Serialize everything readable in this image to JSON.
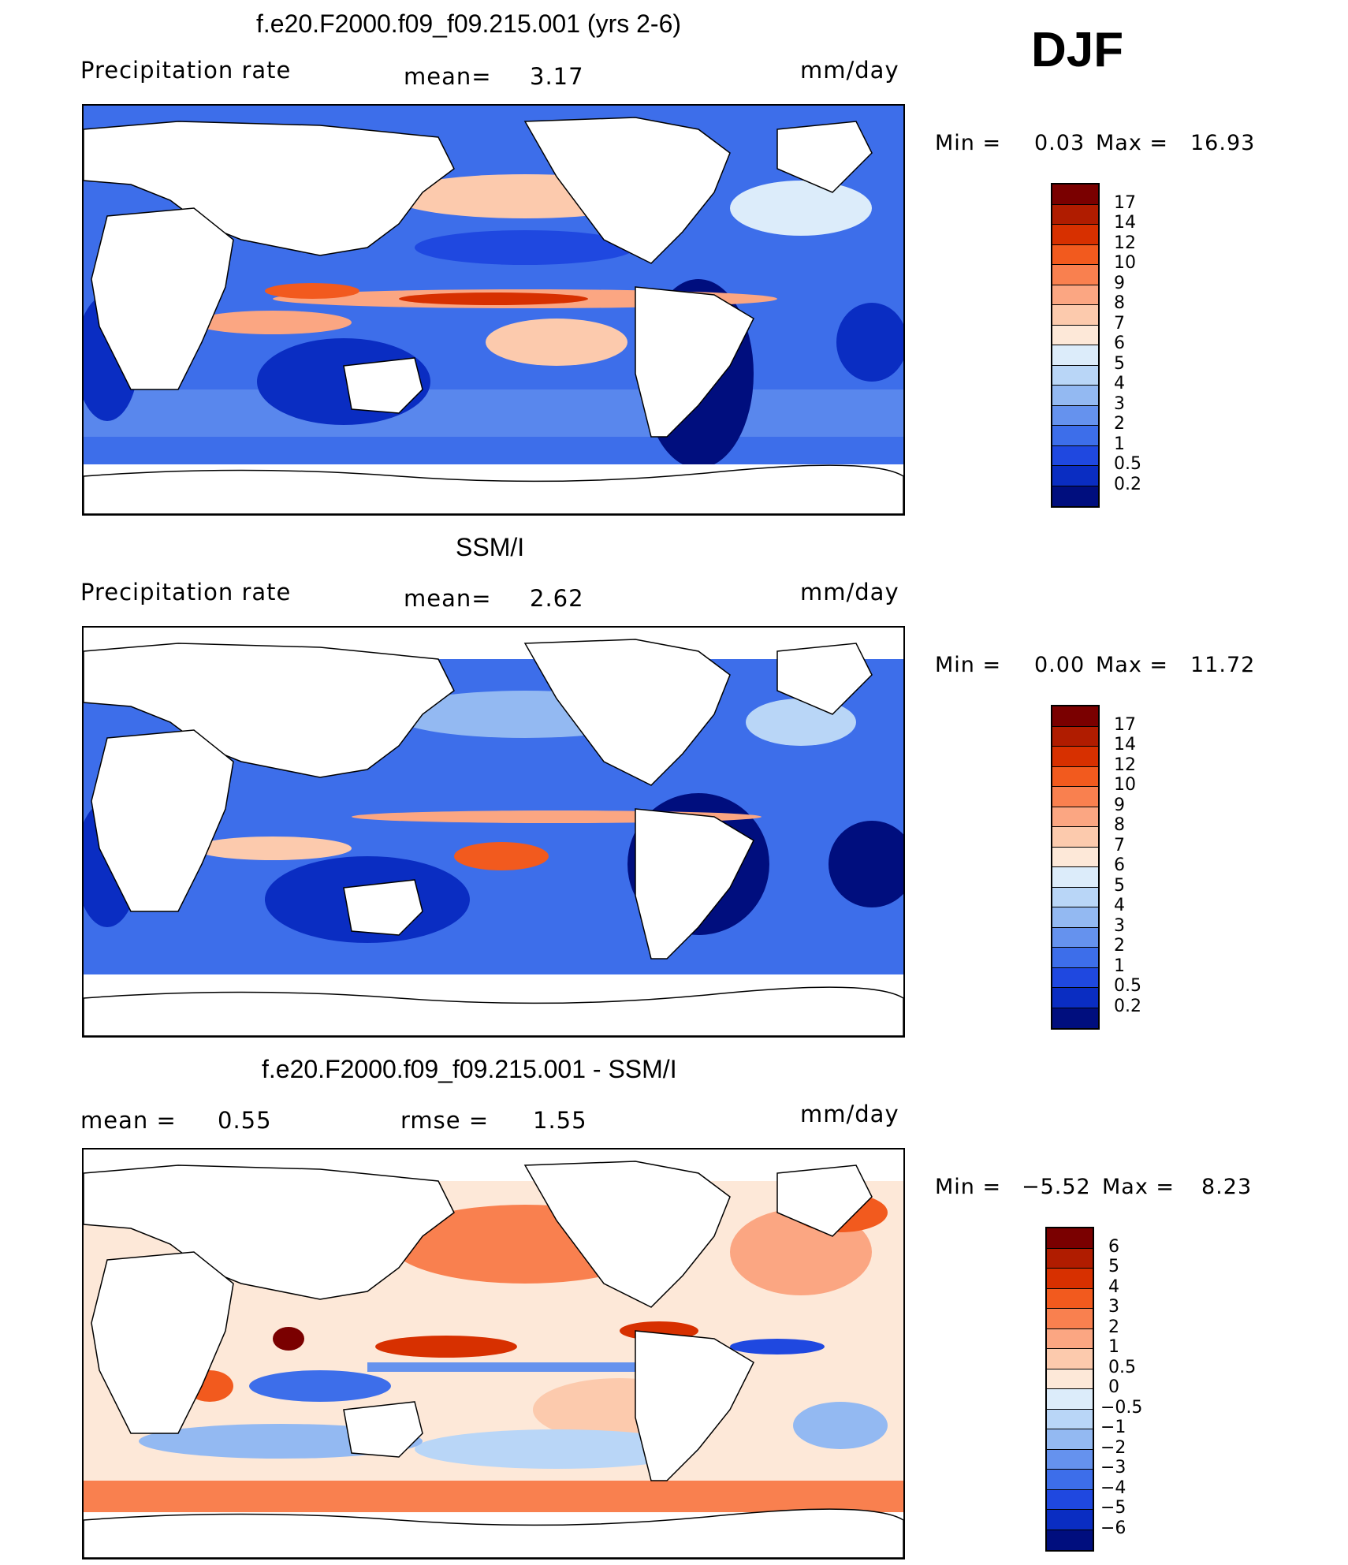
{
  "season": "DJF",
  "panels": [
    {
      "title": "f.e20.F2000.f09_f09.215.001 (yrs 2-6)",
      "left_label": "Precipitation  rate",
      "mid_label": "mean=",
      "mid_value": "3.17",
      "units": "mm/day",
      "minmax": {
        "min_label": "Min  =",
        "min": "0.03",
        "max_label": "Max  =",
        "max": "16.93"
      }
    },
    {
      "title": "SSM/I",
      "left_label": "Precipitation  rate",
      "mid_label": "mean=",
      "mid_value": "2.62",
      "units": "mm/day",
      "minmax": {
        "min_label": "Min  =",
        "min": "0.00",
        "max_label": "Max  =",
        "max": "11.72"
      }
    },
    {
      "title": "f.e20.F2000.f09_f09.215.001 - SSM/I",
      "left_label": "mean  =",
      "left_value": "0.55",
      "mid_label": "rmse  =",
      "mid_value": "1.55",
      "units": "mm/day",
      "minmax": {
        "min_label": "Min  =",
        "min": "−5.52",
        "max_label": "Max  =",
        "max": "8.23"
      }
    }
  ],
  "chart_data": [
    {
      "type": "heatmap",
      "title": "f.e20.F2000.f09_f09.215.001 (yrs 2-6)",
      "variable": "Precipitation  rate",
      "units": "mm/day",
      "mean": 3.17,
      "min": 0.03,
      "max": 16.93,
      "colorbar_levels": [
        "17",
        "14",
        "12",
        "10",
        "9",
        "8",
        "7",
        "6",
        "5",
        "4",
        "3",
        "2",
        "1",
        "0.5",
        "0.2"
      ],
      "colors": [
        "#7a0000",
        "#b01c00",
        "#d73000",
        "#f25a1e",
        "#f9804f",
        "#fba682",
        "#fccaad",
        "#fde8d8",
        "#dcecfa",
        "#b9d6f7",
        "#93b9f2",
        "#6592ee",
        "#3d6eea",
        "#1f48e0",
        "#0a2dc2",
        "#000e7e"
      ]
    },
    {
      "type": "heatmap",
      "title": "SSM/I",
      "variable": "Precipitation  rate",
      "units": "mm/day",
      "mean": 2.62,
      "min": 0.0,
      "max": 11.72,
      "colorbar_levels": [
        "17",
        "14",
        "12",
        "10",
        "9",
        "8",
        "7",
        "6",
        "5",
        "4",
        "3",
        "2",
        "1",
        "0.5",
        "0.2"
      ],
      "colors": [
        "#7a0000",
        "#b01c00",
        "#d73000",
        "#f25a1e",
        "#f9804f",
        "#fba682",
        "#fccaad",
        "#fde8d8",
        "#dcecfa",
        "#b9d6f7",
        "#93b9f2",
        "#6592ee",
        "#3d6eea",
        "#1f48e0",
        "#0a2dc2",
        "#000e7e"
      ]
    },
    {
      "type": "heatmap",
      "title": "f.e20.F2000.f09_f09.215.001 - SSM/I",
      "units": "mm/day",
      "mean": 0.55,
      "rmse": 1.55,
      "min": -5.52,
      "max": 8.23,
      "colorbar_levels": [
        "6",
        "5",
        "4",
        "3",
        "2",
        "1",
        "0.5",
        "0",
        "−0.5",
        "−1",
        "−2",
        "−3",
        "−4",
        "−5",
        "−6"
      ],
      "colors": [
        "#7a0000",
        "#b01c00",
        "#d73000",
        "#f25a1e",
        "#f9804f",
        "#fba682",
        "#fccaad",
        "#fde8d8",
        "#dcecfa",
        "#b9d6f7",
        "#93b9f2",
        "#6592ee",
        "#3d6eea",
        "#1f48e0",
        "#0a2dc2",
        "#000e7e"
      ]
    }
  ]
}
